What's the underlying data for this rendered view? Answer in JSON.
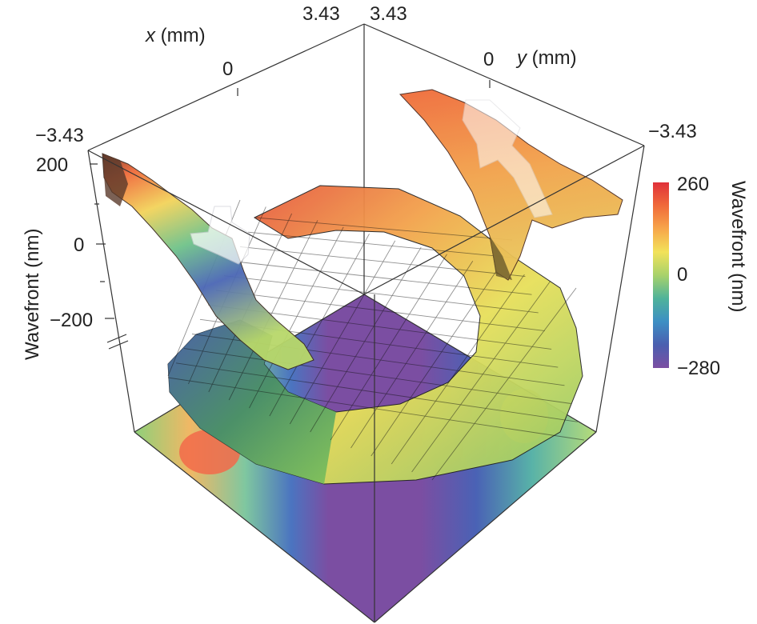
{
  "chart_data": {
    "type": "3d-surface",
    "x_axis": {
      "var": "x",
      "unit": " (mm)",
      "ticks": [
        "−3.43",
        "0",
        "3.43"
      ]
    },
    "y_axis": {
      "var": "y",
      "unit": " (mm)",
      "ticks": [
        "3.43",
        "0",
        "−3.43"
      ]
    },
    "z_axis": {
      "label": "Wavefront (nm)",
      "ticks": [
        "200",
        "0",
        "−200"
      ]
    },
    "colorbar": {
      "label": "Wavefront (nm)",
      "ticks": [
        "260",
        "0",
        "−280"
      ],
      "range": [
        -280,
        260
      ],
      "colors": [
        "#7b4ea2",
        "#4a5fb0",
        "#3d8fc4",
        "#4fb39a",
        "#a8d26a",
        "#f2e25a",
        "#f7a64a",
        "#f06a3a",
        "#e0313a"
      ]
    },
    "series": [
      {
        "name": "annular wavefront surface",
        "z_range": [
          -280,
          260
        ]
      },
      {
        "name": "x-projection"
      },
      {
        "name": "y-projection"
      },
      {
        "name": "bottom contour map"
      }
    ]
  }
}
